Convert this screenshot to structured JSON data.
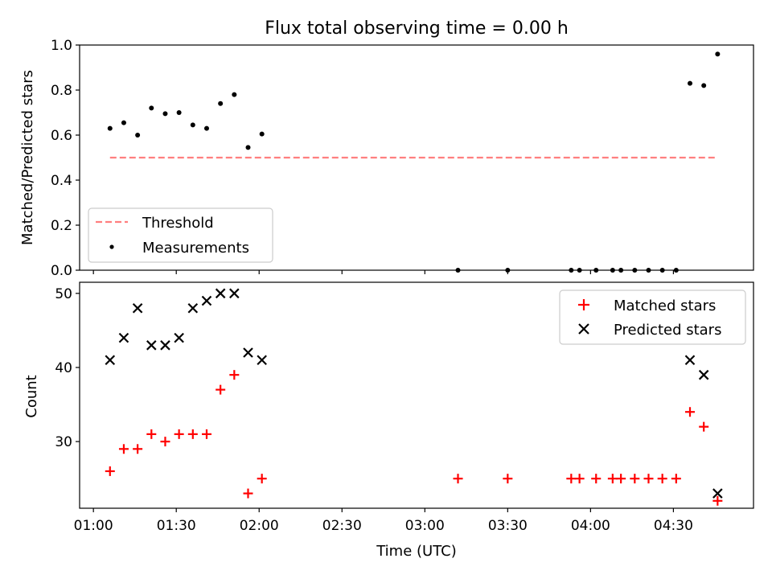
{
  "title": "Flux total observing time = 0.00 h",
  "xlabel": "Time (UTC)",
  "x_ticks": [
    "01:00",
    "01:30",
    "02:00",
    "02:30",
    "03:00",
    "03:30",
    "04:00",
    "04:30"
  ],
  "colors": {
    "threshold": "#ff7f7f",
    "measurements": "#000000",
    "matched": "#ff0000",
    "predicted": "#000000"
  },
  "chart_data": [
    {
      "type": "scatter",
      "ylabel": "Matched/Predicted stars",
      "ylim": [
        0,
        1.0
      ],
      "xlim": [
        "00:55",
        "04:59"
      ],
      "y_ticks": [
        "0.0",
        "0.2",
        "0.4",
        "0.6",
        "0.8",
        "1.0"
      ],
      "legend_position": "lower-left",
      "threshold": {
        "name": "Threshold",
        "value": 0.5,
        "x_range": [
          "01:06",
          "04:46"
        ]
      },
      "series": [
        {
          "name": "Measurements",
          "points": [
            {
              "x": "01:06",
              "y": 0.63
            },
            {
              "x": "01:11",
              "y": 0.655
            },
            {
              "x": "01:16",
              "y": 0.6
            },
            {
              "x": "01:21",
              "y": 0.72
            },
            {
              "x": "01:26",
              "y": 0.695
            },
            {
              "x": "01:31",
              "y": 0.7
            },
            {
              "x": "01:36",
              "y": 0.645
            },
            {
              "x": "01:41",
              "y": 0.63
            },
            {
              "x": "01:46",
              "y": 0.74
            },
            {
              "x": "01:51",
              "y": 0.78
            },
            {
              "x": "01:56",
              "y": 0.545
            },
            {
              "x": "02:01",
              "y": 0.605
            },
            {
              "x": "03:12",
              "y": 0.0
            },
            {
              "x": "03:30",
              "y": 0.0
            },
            {
              "x": "03:53",
              "y": 0.0
            },
            {
              "x": "03:56",
              "y": 0.0
            },
            {
              "x": "04:02",
              "y": 0.0
            },
            {
              "x": "04:08",
              "y": 0.0
            },
            {
              "x": "04:11",
              "y": 0.0
            },
            {
              "x": "04:16",
              "y": 0.0
            },
            {
              "x": "04:21",
              "y": 0.0
            },
            {
              "x": "04:26",
              "y": 0.0
            },
            {
              "x": "04:31",
              "y": 0.0
            },
            {
              "x": "04:36",
              "y": 0.83
            },
            {
              "x": "04:41",
              "y": 0.82
            },
            {
              "x": "04:46",
              "y": 0.96
            }
          ]
        }
      ]
    },
    {
      "type": "scatter",
      "ylabel": "Count",
      "ylim": [
        21,
        51.5
      ],
      "xlim": [
        "00:55",
        "04:59"
      ],
      "y_ticks": [
        "30",
        "40",
        "50"
      ],
      "legend_position": "upper-right",
      "series": [
        {
          "name": "Matched stars",
          "marker": "plus",
          "points": [
            {
              "x": "01:06",
              "y": 26
            },
            {
              "x": "01:11",
              "y": 29
            },
            {
              "x": "01:16",
              "y": 29
            },
            {
              "x": "01:21",
              "y": 31
            },
            {
              "x": "01:26",
              "y": 30
            },
            {
              "x": "01:31",
              "y": 31
            },
            {
              "x": "01:36",
              "y": 31
            },
            {
              "x": "01:41",
              "y": 31
            },
            {
              "x": "01:46",
              "y": 37
            },
            {
              "x": "01:51",
              "y": 39
            },
            {
              "x": "01:56",
              "y": 23
            },
            {
              "x": "02:01",
              "y": 25
            },
            {
              "x": "03:12",
              "y": 25
            },
            {
              "x": "03:30",
              "y": 25
            },
            {
              "x": "03:53",
              "y": 25
            },
            {
              "x": "03:56",
              "y": 25
            },
            {
              "x": "04:02",
              "y": 25
            },
            {
              "x": "04:08",
              "y": 25
            },
            {
              "x": "04:11",
              "y": 25
            },
            {
              "x": "04:16",
              "y": 25
            },
            {
              "x": "04:21",
              "y": 25
            },
            {
              "x": "04:26",
              "y": 25
            },
            {
              "x": "04:31",
              "y": 25
            },
            {
              "x": "04:36",
              "y": 34
            },
            {
              "x": "04:41",
              "y": 32
            },
            {
              "x": "04:46",
              "y": 22
            }
          ]
        },
        {
          "name": "Predicted stars",
          "marker": "x",
          "points": [
            {
              "x": "01:06",
              "y": 41
            },
            {
              "x": "01:11",
              "y": 44
            },
            {
              "x": "01:16",
              "y": 48
            },
            {
              "x": "01:21",
              "y": 43
            },
            {
              "x": "01:26",
              "y": 43
            },
            {
              "x": "01:31",
              "y": 44
            },
            {
              "x": "01:36",
              "y": 48
            },
            {
              "x": "01:41",
              "y": 49
            },
            {
              "x": "01:46",
              "y": 50
            },
            {
              "x": "01:51",
              "y": 50
            },
            {
              "x": "01:56",
              "y": 42
            },
            {
              "x": "02:01",
              "y": 41
            },
            {
              "x": "04:36",
              "y": 41
            },
            {
              "x": "04:41",
              "y": 39
            },
            {
              "x": "04:46",
              "y": 23
            }
          ]
        }
      ]
    }
  ]
}
